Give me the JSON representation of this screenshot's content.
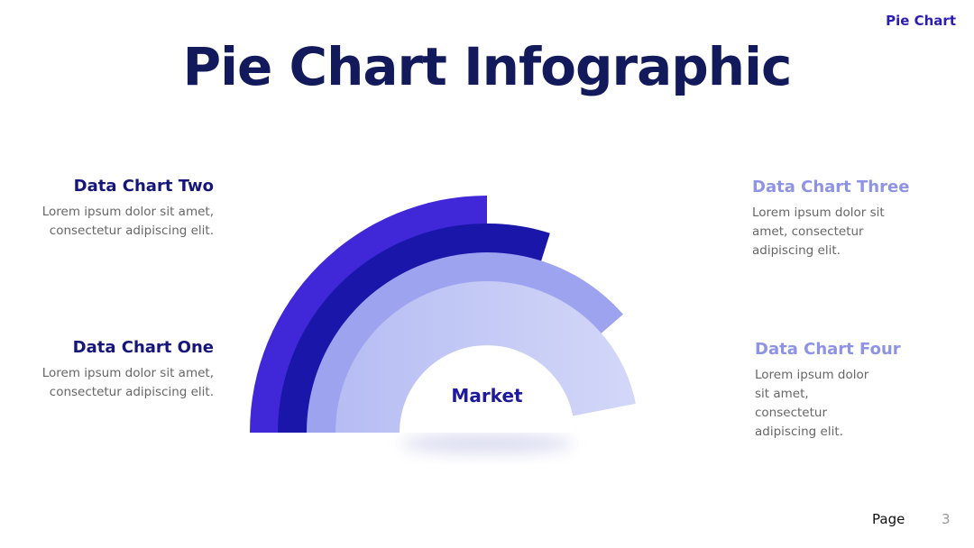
{
  "header": {
    "tag": "Pie Chart",
    "title": "Pie Chart Infographic"
  },
  "items": [
    {
      "title": "Data Chart Two",
      "text": "Lorem ipsum dolor sit amet, consectetur adipiscing elit."
    },
    {
      "title": "Data Chart One",
      "text": "Lorem ipsum dolor sit amet, consectetur adipiscing elit."
    },
    {
      "title": "Data Chart Three",
      "text": "Lorem ipsum dolor sit amet, consectetur adipiscing elit."
    },
    {
      "title": "Data Chart Four",
      "text": "Lorem ipsum dolor sit amet, consectetur adipiscing elit."
    }
  ],
  "center_label": "Market",
  "footer": {
    "label": "Page",
    "number": "3"
  }
}
